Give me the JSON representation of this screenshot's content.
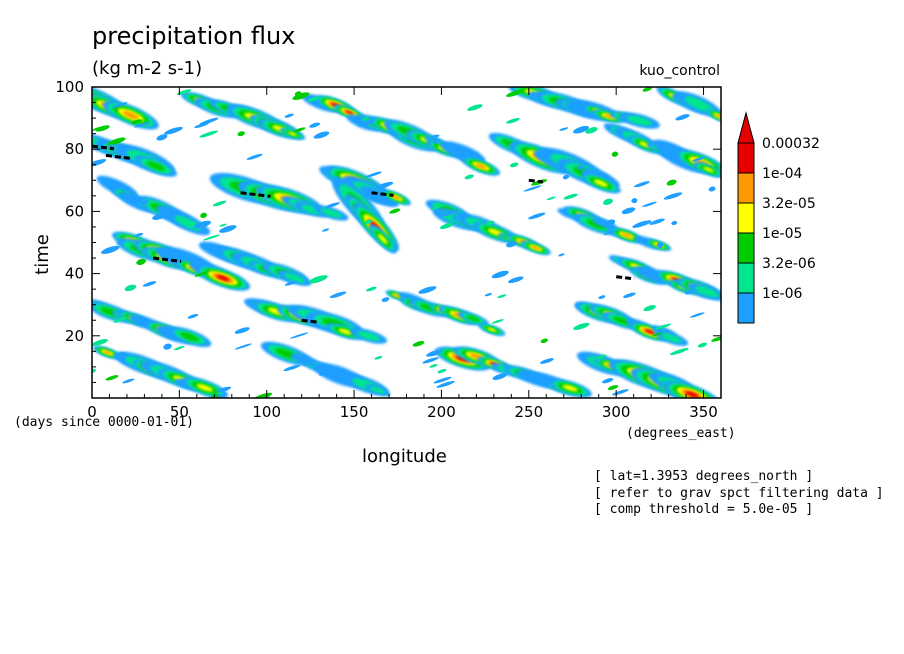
{
  "chart_data": {
    "type": "heatmap",
    "title": "precipitation flux",
    "units": "(kg m-2 s-1)",
    "run_label": "kuo_control",
    "xlabel": "longitude",
    "ylabel": "time",
    "x_sublabel": "(days since 0000-01-01)",
    "x_units": "(degrees_east)",
    "xlim": [
      0,
      360
    ],
    "ylim": [
      0,
      100
    ],
    "xticks": [
      0,
      50,
      100,
      150,
      200,
      250,
      300,
      350
    ],
    "yticks": [
      20,
      40,
      60,
      80,
      100
    ],
    "colorbar": {
      "labels": [
        "0.00032",
        "1e-04",
        "3.2e-05",
        "1e-05",
        "3.2e-06",
        "1e-06"
      ],
      "colors": [
        "#1f9fff",
        "#00e58e",
        "#00cc00",
        "#ffff00",
        "#ff9900",
        "#e60000"
      ],
      "extend_color": "#e60000"
    },
    "notes": [
      "[ lat=1.3953 degrees_north ]",
      "[ refer to grav spct filtering data ]",
      "[ comp threshold = 5.0e-05 ]"
    ],
    "bands": [
      {
        "x0": 0,
        "t0": 97,
        "x1": 30,
        "t1": 90,
        "w": 2.2
      },
      {
        "x0": 5,
        "t0": 82,
        "x1": 40,
        "t1": 74,
        "w": 2.5
      },
      {
        "x0": 10,
        "t0": 68,
        "x1": 60,
        "t1": 55,
        "w": 2.0
      },
      {
        "x0": 20,
        "t0": 50,
        "x1": 80,
        "t1": 38,
        "w": 2.2
      },
      {
        "x0": 0,
        "t0": 30,
        "x1": 60,
        "t1": 18,
        "w": 2.0
      },
      {
        "x0": 10,
        "t0": 14,
        "x1": 70,
        "t1": 2,
        "w": 2.0
      },
      {
        "x0": 60,
        "t0": 96,
        "x1": 120,
        "t1": 84,
        "w": 2.0
      },
      {
        "x0": 85,
        "t0": 68,
        "x1": 140,
        "t1": 58,
        "w": 2.6
      },
      {
        "x0": 70,
        "t0": 48,
        "x1": 120,
        "t1": 38,
        "w": 2.0
      },
      {
        "x0": 100,
        "t0": 30,
        "x1": 160,
        "t1": 20,
        "w": 2.0
      },
      {
        "x0": 110,
        "t0": 14,
        "x1": 170,
        "t1": 2,
        "w": 2.0
      },
      {
        "x0": 130,
        "t0": 95,
        "x1": 190,
        "t1": 82,
        "w": 2.0
      },
      {
        "x0": 140,
        "t0": 72,
        "x1": 180,
        "t1": 62,
        "w": 2.4
      },
      {
        "x0": 150,
        "t0": 62,
        "x1": 170,
        "t1": 50,
        "w": 2.6
      },
      {
        "x0": 180,
        "t0": 85,
        "x1": 230,
        "t1": 74,
        "w": 1.8
      },
      {
        "x0": 200,
        "t0": 60,
        "x1": 260,
        "t1": 48,
        "w": 1.8
      },
      {
        "x0": 170,
        "t0": 34,
        "x1": 230,
        "t1": 22,
        "w": 1.8
      },
      {
        "x0": 210,
        "t0": 14,
        "x1": 280,
        "t1": 2,
        "w": 2.0
      },
      {
        "x0": 240,
        "t0": 82,
        "x1": 300,
        "t1": 68,
        "w": 2.4
      },
      {
        "x0": 250,
        "t0": 98,
        "x1": 320,
        "t1": 88,
        "w": 2.0
      },
      {
        "x0": 300,
        "t0": 86,
        "x1": 360,
        "t1": 72,
        "w": 2.4
      },
      {
        "x0": 270,
        "t0": 60,
        "x1": 330,
        "t1": 48,
        "w": 1.8
      },
      {
        "x0": 300,
        "t0": 44,
        "x1": 360,
        "t1": 32,
        "w": 2.0
      },
      {
        "x0": 280,
        "t0": 30,
        "x1": 340,
        "t1": 18,
        "w": 1.8
      },
      {
        "x0": 290,
        "t0": 12,
        "x1": 350,
        "t1": 0,
        "w": 2.4
      },
      {
        "x0": 330,
        "t0": 98,
        "x1": 360,
        "t1": 90,
        "w": 2.0
      }
    ],
    "contour_markers": [
      {
        "x": 0,
        "t": 81,
        "len": 22
      },
      {
        "x": 8,
        "t": 78,
        "len": 26
      },
      {
        "x": 85,
        "t": 66,
        "len": 30
      },
      {
        "x": 160,
        "t": 66,
        "len": 22
      },
      {
        "x": 35,
        "t": 45,
        "len": 28
      },
      {
        "x": 300,
        "t": 39,
        "len": 18
      },
      {
        "x": 120,
        "t": 25,
        "len": 16
      },
      {
        "x": 250,
        "t": 70,
        "len": 14
      }
    ]
  }
}
